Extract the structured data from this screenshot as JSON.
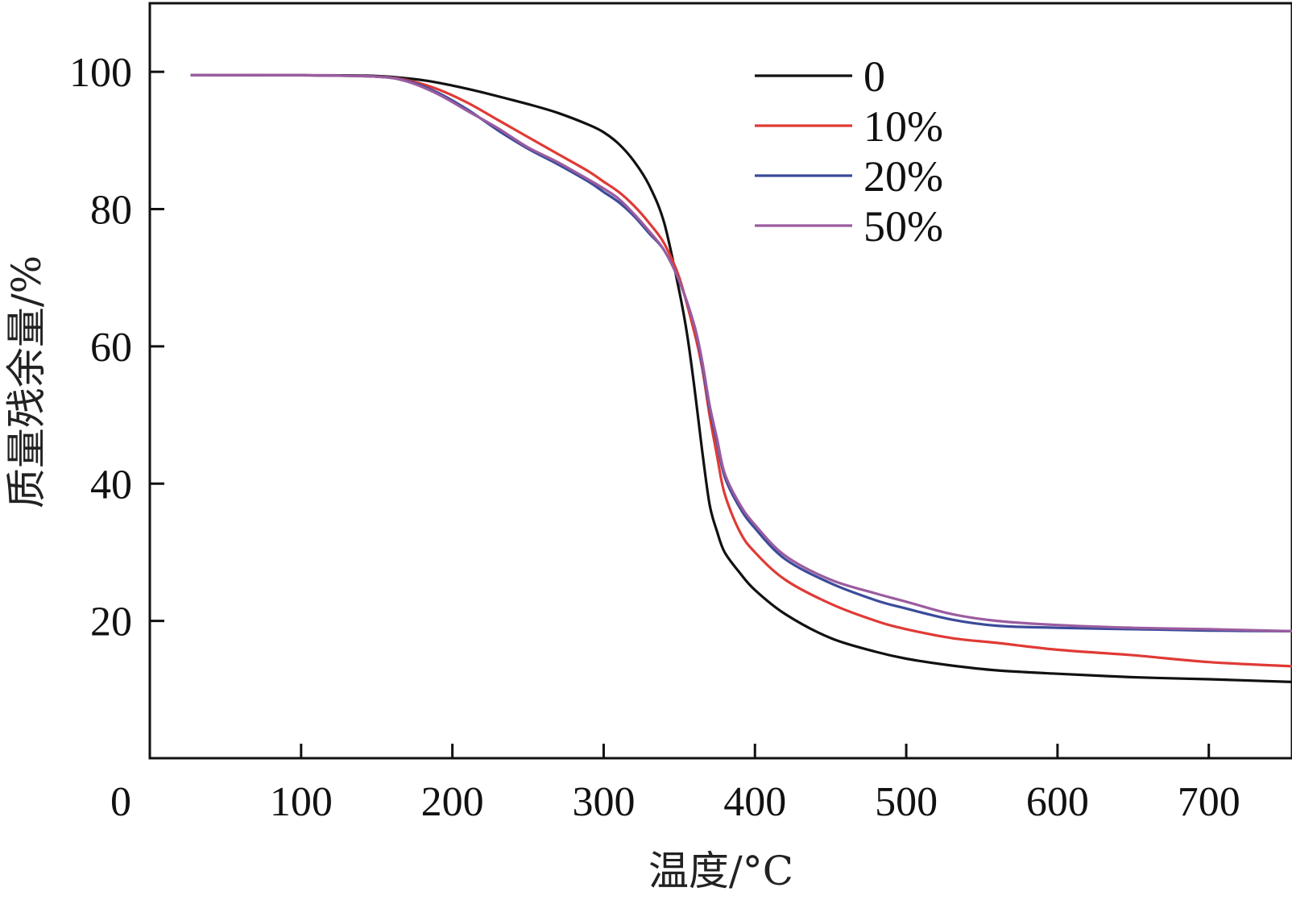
{
  "chart_data": {
    "type": "line",
    "title": "",
    "xlabel": "温度/°C",
    "ylabel": "质量残余量/%",
    "xlim": [
      0,
      755
    ],
    "ylim": [
      0,
      110
    ],
    "x_ticks": [
      0,
      100,
      200,
      300,
      400,
      500,
      600,
      700
    ],
    "x_tick_labels": [
      "0",
      "100",
      "200",
      "300",
      "400",
      "500",
      "600",
      "700"
    ],
    "y_ticks": [
      20,
      40,
      60,
      80,
      100
    ],
    "y_tick_labels": [
      "20",
      "40",
      "60",
      "80",
      "100"
    ],
    "grid": false,
    "legend_position": "top-right",
    "series": [
      {
        "name": "0",
        "color": "#111111",
        "points": [
          [
            27,
            99.5
          ],
          [
            100,
            99.5
          ],
          [
            150,
            99.4
          ],
          [
            180,
            98.8
          ],
          [
            200,
            98
          ],
          [
            220,
            97
          ],
          [
            250,
            95.3
          ],
          [
            270,
            94
          ],
          [
            290,
            92.3
          ],
          [
            300,
            91.2
          ],
          [
            310,
            89.5
          ],
          [
            320,
            87
          ],
          [
            330,
            83.5
          ],
          [
            340,
            78
          ],
          [
            350,
            68
          ],
          [
            355,
            62
          ],
          [
            360,
            54
          ],
          [
            365,
            45
          ],
          [
            370,
            37
          ],
          [
            375,
            33
          ],
          [
            380,
            30
          ],
          [
            390,
            27
          ],
          [
            400,
            24.5
          ],
          [
            420,
            21
          ],
          [
            450,
            17.5
          ],
          [
            480,
            15.5
          ],
          [
            500,
            14.5
          ],
          [
            530,
            13.5
          ],
          [
            560,
            12.8
          ],
          [
            600,
            12.3
          ],
          [
            650,
            11.8
          ],
          [
            700,
            11.5
          ],
          [
            755,
            11.1
          ]
        ]
      },
      {
        "name": "10%",
        "color": "#e03a35",
        "points": [
          [
            27,
            99.5
          ],
          [
            100,
            99.5
          ],
          [
            150,
            99.3
          ],
          [
            170,
            98.8
          ],
          [
            190,
            97.5
          ],
          [
            210,
            95.5
          ],
          [
            230,
            93
          ],
          [
            250,
            90.5
          ],
          [
            270,
            88
          ],
          [
            290,
            85.5
          ],
          [
            300,
            84
          ],
          [
            310,
            82.5
          ],
          [
            320,
            80.5
          ],
          [
            330,
            78
          ],
          [
            340,
            75
          ],
          [
            350,
            70
          ],
          [
            360,
            62
          ],
          [
            365,
            57
          ],
          [
            370,
            50
          ],
          [
            375,
            44
          ],
          [
            380,
            38.5
          ],
          [
            390,
            33
          ],
          [
            400,
            30
          ],
          [
            420,
            26
          ],
          [
            450,
            22.5
          ],
          [
            480,
            20
          ],
          [
            500,
            18.8
          ],
          [
            530,
            17.5
          ],
          [
            560,
            16.8
          ],
          [
            600,
            15.8
          ],
          [
            650,
            15
          ],
          [
            700,
            14
          ],
          [
            755,
            13.4
          ]
        ]
      },
      {
        "name": "20%",
        "color": "#3a4b9a",
        "points": [
          [
            27,
            99.5
          ],
          [
            100,
            99.5
          ],
          [
            150,
            99.3
          ],
          [
            170,
            98.7
          ],
          [
            190,
            97
          ],
          [
            210,
            94.5
          ],
          [
            230,
            91.5
          ],
          [
            250,
            88.8
          ],
          [
            270,
            86.5
          ],
          [
            290,
            84
          ],
          [
            300,
            82.5
          ],
          [
            310,
            81
          ],
          [
            320,
            79
          ],
          [
            330,
            76.5
          ],
          [
            340,
            74
          ],
          [
            350,
            69.5
          ],
          [
            360,
            63
          ],
          [
            365,
            57.5
          ],
          [
            370,
            51
          ],
          [
            375,
            46
          ],
          [
            380,
            41
          ],
          [
            390,
            36.5
          ],
          [
            400,
            33.5
          ],
          [
            420,
            29
          ],
          [
            450,
            25.5
          ],
          [
            480,
            23
          ],
          [
            500,
            21.8
          ],
          [
            530,
            20.2
          ],
          [
            560,
            19.3
          ],
          [
            600,
            19
          ],
          [
            650,
            18.8
          ],
          [
            700,
            18.6
          ],
          [
            755,
            18.5
          ]
        ]
      },
      {
        "name": "50%",
        "color": "#9b5c9f",
        "points": [
          [
            27,
            99.5
          ],
          [
            100,
            99.5
          ],
          [
            150,
            99.3
          ],
          [
            170,
            98.6
          ],
          [
            190,
            96.8
          ],
          [
            210,
            94.3
          ],
          [
            230,
            91.8
          ],
          [
            250,
            89
          ],
          [
            270,
            86.8
          ],
          [
            290,
            84.3
          ],
          [
            300,
            83
          ],
          [
            310,
            81.5
          ],
          [
            320,
            79.3
          ],
          [
            330,
            76.8
          ],
          [
            340,
            74
          ],
          [
            350,
            69.5
          ],
          [
            360,
            63
          ],
          [
            365,
            58
          ],
          [
            370,
            51.5
          ],
          [
            375,
            46.5
          ],
          [
            380,
            41.5
          ],
          [
            390,
            37
          ],
          [
            400,
            34
          ],
          [
            420,
            29.5
          ],
          [
            450,
            26
          ],
          [
            480,
            24
          ],
          [
            500,
            22.8
          ],
          [
            530,
            21
          ],
          [
            560,
            20
          ],
          [
            600,
            19.4
          ],
          [
            650,
            19
          ],
          [
            700,
            18.8
          ],
          [
            755,
            18.5
          ]
        ]
      }
    ]
  }
}
